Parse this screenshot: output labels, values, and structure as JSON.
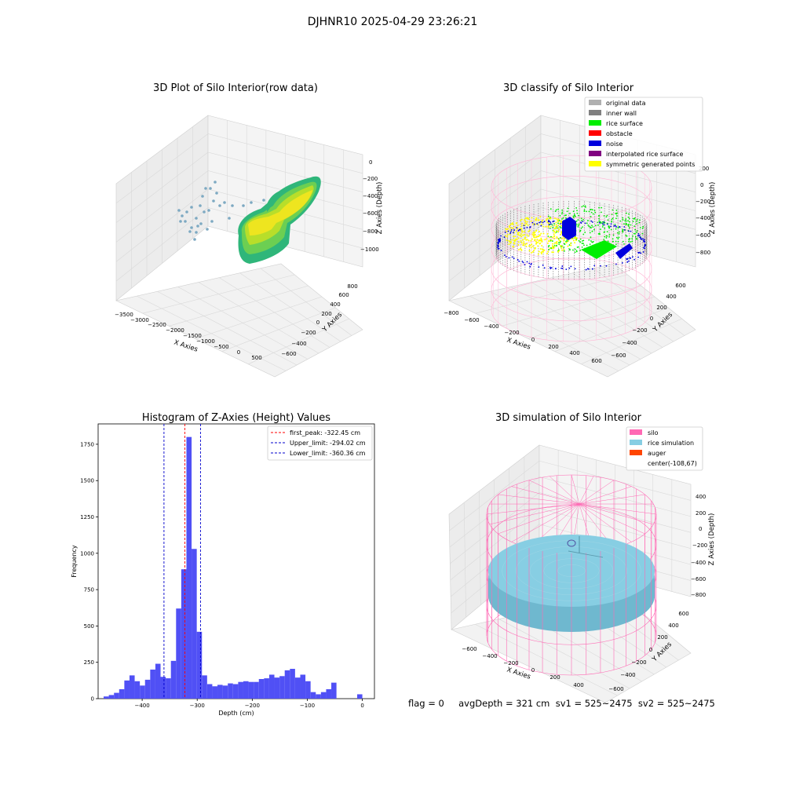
{
  "figure": {
    "suptitle": "DJHNR10 2025-04-29 23:26:21",
    "status_line": "flag = 0     avgDepth = 321 cm  sv1 = 525~2475  sv2 = 525~2475"
  },
  "colors": {
    "hist_bar": "#5050f5",
    "first_peak": "#ff0000",
    "limit_line": "#0000cc",
    "silo": "#ff69b4",
    "rice_sim": "#87cee3",
    "auger": "#ff4500",
    "pane": "#f2f2f2",
    "grid": "#d9d9d9"
  },
  "chart_data": [
    {
      "type": "scatter3d",
      "title": "3D Plot of Silo Interior(row data)",
      "xlabel": "X Axies",
      "ylabel": "Y Axies",
      "zlabel": "Z Axies (Depth)",
      "x_ticks": [
        "−3500",
        "−3000",
        "−2500",
        "−2000",
        "−1500",
        "−1000",
        "−500",
        "0",
        "500"
      ],
      "y_ticks": [
        "−600",
        "−400",
        "−200",
        "0",
        "200",
        "400",
        "600",
        "800"
      ],
      "z_ticks": [
        "0",
        "−200",
        "−400",
        "−600",
        "−800",
        "−1000"
      ],
      "colormap": "viridis"
    },
    {
      "type": "scatter3d",
      "title": "3D classify of Silo Interior",
      "xlabel": "X Axies",
      "ylabel": "Y Axies",
      "zlabel": "Z Axies (Depth)",
      "x_ticks": [
        "−800",
        "−600",
        "−400",
        "−200",
        "0",
        "200",
        "400",
        "600"
      ],
      "y_ticks": [
        "−600",
        "−400",
        "−200",
        "0",
        "200",
        "400",
        "600"
      ],
      "z_ticks": [
        "200",
        "0",
        "−200",
        "−400",
        "−600",
        "−800"
      ],
      "legend_position": "top-right",
      "legend": [
        {
          "label": "original data",
          "color": "#b0b0b0"
        },
        {
          "label": "inner wall",
          "color": "#808080"
        },
        {
          "label": "rice surface",
          "color": "#00ee00"
        },
        {
          "label": "obstacle",
          "color": "#ff0000"
        },
        {
          "label": "noise",
          "color": "#0000dd"
        },
        {
          "label": "interpolated rice surface",
          "color": "#800080"
        },
        {
          "label": "symmetric generated points",
          "color": "#ffff00"
        }
      ]
    },
    {
      "type": "bar",
      "title": "Histogram of Z-Axies (Height) Values",
      "xlabel": "Depth (cm)",
      "ylabel": "Frequency",
      "xlim": [
        -480,
        22
      ],
      "ylim": [
        0,
        1890
      ],
      "x_ticks": [
        -400,
        -300,
        -200,
        -100,
        0
      ],
      "y_ticks": [
        0,
        250,
        500,
        750,
        1000,
        1250,
        1500,
        1750
      ],
      "bin_start": -470,
      "bin_width": 9.4,
      "values": [
        15,
        25,
        40,
        65,
        125,
        160,
        120,
        90,
        130,
        200,
        240,
        150,
        140,
        260,
        620,
        890,
        1800,
        1030,
        460,
        160,
        100,
        85,
        95,
        90,
        105,
        100,
        115,
        120,
        115,
        115,
        135,
        140,
        165,
        145,
        155,
        195,
        205,
        145,
        165,
        120,
        45,
        30,
        45,
        65,
        110,
        0,
        0,
        0,
        0,
        30
      ],
      "vlines": [
        {
          "label": "first_peak: -322.45 cm",
          "x": -322.45,
          "color": "#ff0000"
        },
        {
          "label": "Upper_limit: -294.02 cm",
          "x": -294.02,
          "color": "#0000cc"
        },
        {
          "label": "Lower_limit: -360.36 cm",
          "x": -360.36,
          "color": "#0000cc"
        }
      ],
      "legend_position": "top-right"
    },
    {
      "type": "surface3d",
      "title": "3D simulation of Silo Interior",
      "xlabel": "X Axies",
      "ylabel": "Y Axies",
      "zlabel": "Z Axies (Depth)",
      "x_ticks": [
        "−600",
        "−400",
        "−200",
        "0",
        "200",
        "400"
      ],
      "y_ticks": [
        "−600",
        "−400",
        "−200",
        "0",
        "200",
        "400",
        "600"
      ],
      "z_ticks": [
        "400",
        "200",
        "0",
        "−200",
        "−400",
        "−600",
        "−800"
      ],
      "legend_position": "top-right",
      "legend": [
        {
          "label": "silo",
          "color": "#ff69b4"
        },
        {
          "label": "rice simulation",
          "color": "#87cee3"
        },
        {
          "label": "auger",
          "color": "#ff4500"
        },
        {
          "label": "center(-108,67)",
          "color": ""
        }
      ]
    }
  ]
}
